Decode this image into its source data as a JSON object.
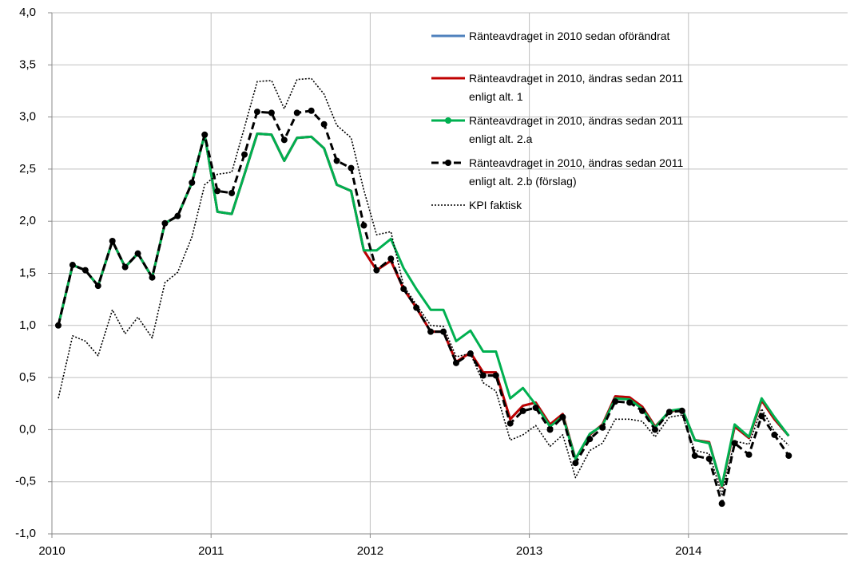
{
  "chart_data": {
    "type": "line",
    "x": [
      2010.04,
      2010.13,
      2010.21,
      2010.29,
      2010.38,
      2010.46,
      2010.54,
      2010.63,
      2010.71,
      2010.79,
      2010.88,
      2010.96,
      2011.04,
      2011.13,
      2011.21,
      2011.29,
      2011.38,
      2011.46,
      2011.54,
      2011.63,
      2011.71,
      2011.79,
      2011.88,
      2011.96,
      2012.04,
      2012.13,
      2012.21,
      2012.29,
      2012.38,
      2012.46,
      2012.54,
      2012.63,
      2012.71,
      2012.79,
      2012.88,
      2012.96,
      2013.04,
      2013.13,
      2013.21,
      2013.29,
      2013.38,
      2013.46,
      2013.54,
      2013.63,
      2013.71,
      2013.79,
      2013.88,
      2013.96,
      2014.04,
      2014.13,
      2014.21,
      2014.29,
      2014.38,
      2014.46,
      2014.54,
      2014.63
    ],
    "series": [
      {
        "name": "Ränteavdraget in 2010 sedan oförändrat",
        "color": "#4f81bd",
        "style": "solid",
        "values": [
          1.0,
          1.58,
          1.53,
          1.38,
          1.81,
          1.56,
          1.69,
          1.46,
          1.98,
          2.05,
          2.37,
          2.83,
          2.09,
          2.07,
          2.45,
          2.84,
          2.83,
          2.58,
          2.8,
          2.81,
          2.7,
          2.35,
          2.29,
          1.72,
          1.53,
          1.62,
          1.35,
          1.17,
          0.94,
          0.94,
          0.65,
          0.74,
          0.55,
          0.55,
          0.1,
          0.23,
          0.26,
          0.05,
          0.15,
          -0.28,
          -0.05,
          0.05,
          0.32,
          0.31,
          0.22,
          0.03,
          0.17,
          0.2,
          -0.1,
          -0.12,
          -0.55,
          0.03,
          -0.08,
          0.28,
          0.1,
          -0.06
        ]
      },
      {
        "name": "Ränteavdraget in 2010, ändras sedan 2011\nenligt alt. 1",
        "color": "#c00000",
        "style": "solid",
        "values": [
          1.0,
          1.58,
          1.53,
          1.38,
          1.81,
          1.56,
          1.69,
          1.46,
          1.98,
          2.05,
          2.37,
          2.83,
          2.09,
          2.07,
          2.45,
          2.84,
          2.83,
          2.58,
          2.8,
          2.81,
          2.7,
          2.35,
          2.29,
          1.72,
          1.53,
          1.62,
          1.35,
          1.17,
          0.94,
          0.94,
          0.65,
          0.74,
          0.55,
          0.55,
          0.1,
          0.23,
          0.26,
          0.05,
          0.15,
          -0.28,
          -0.05,
          0.05,
          0.32,
          0.31,
          0.22,
          0.03,
          0.17,
          0.2,
          -0.1,
          -0.12,
          -0.55,
          0.03,
          -0.08,
          0.28,
          0.1,
          -0.06
        ]
      },
      {
        "name": "Ränteavdraget in 2010, ändras sedan 2011\nenligt alt. 2.a",
        "color": "#00b050",
        "style": "solid",
        "values": [
          1.0,
          1.58,
          1.53,
          1.38,
          1.81,
          1.56,
          1.69,
          1.46,
          1.98,
          2.05,
          2.37,
          2.83,
          2.09,
          2.07,
          2.45,
          2.84,
          2.83,
          2.58,
          2.8,
          2.81,
          2.7,
          2.35,
          2.29,
          1.72,
          1.72,
          1.83,
          1.55,
          1.35,
          1.15,
          1.15,
          0.85,
          0.95,
          0.75,
          0.75,
          0.3,
          0.4,
          0.24,
          0.03,
          0.13,
          -0.28,
          -0.04,
          0.04,
          0.3,
          0.29,
          0.2,
          0.02,
          0.18,
          0.2,
          -0.1,
          -0.13,
          -0.54,
          0.05,
          -0.07,
          0.3,
          0.12,
          -0.06
        ]
      },
      {
        "name": "Ränteavdraget in 2010, ändras sedan 2011\nenligt alt. 2.b (förslag)",
        "color": "#000000",
        "style": "dashed",
        "marker": true,
        "values": [
          1.0,
          1.58,
          1.53,
          1.38,
          1.81,
          1.56,
          1.69,
          1.46,
          1.98,
          2.05,
          2.37,
          2.83,
          2.29,
          2.27,
          2.64,
          3.05,
          3.04,
          2.78,
          3.04,
          3.06,
          2.93,
          2.58,
          2.51,
          1.96,
          1.53,
          1.64,
          1.35,
          1.17,
          0.94,
          0.94,
          0.64,
          0.73,
          0.52,
          0.52,
          0.06,
          0.18,
          0.21,
          0.0,
          0.12,
          -0.32,
          -0.09,
          0.02,
          0.27,
          0.26,
          0.18,
          0.0,
          0.17,
          0.18,
          -0.25,
          -0.28,
          -0.71,
          -0.13,
          -0.24,
          0.13,
          -0.05,
          -0.25
        ]
      },
      {
        "name": "KPI faktisk",
        "color": "#000000",
        "style": "dotted",
        "values": [
          0.3,
          0.9,
          0.85,
          0.71,
          1.15,
          0.92,
          1.08,
          0.88,
          1.41,
          1.51,
          1.85,
          2.35,
          2.45,
          2.47,
          2.9,
          3.34,
          3.35,
          3.08,
          3.36,
          3.37,
          3.22,
          2.92,
          2.8,
          2.3,
          1.87,
          1.9,
          1.38,
          1.2,
          1.0,
          0.99,
          0.7,
          0.73,
          0.45,
          0.37,
          -0.1,
          -0.05,
          0.04,
          -0.16,
          -0.05,
          -0.46,
          -0.2,
          -0.13,
          0.1,
          0.1,
          0.08,
          -0.07,
          0.12,
          0.14,
          -0.2,
          -0.23,
          -0.62,
          -0.11,
          -0.14,
          0.2,
          -0.02,
          -0.15
        ]
      }
    ],
    "xlim": [
      2010,
      2015
    ],
    "xticks": [
      2010,
      2011,
      2012,
      2013,
      2014
    ],
    "ylim": [
      -1,
      4
    ],
    "yticks": [
      {
        "value": -1,
        "label": "-1,0"
      },
      {
        "value": -0.5,
        "label": "-0,5"
      },
      {
        "value": 0,
        "label": "0,0"
      },
      {
        "value": 0.5,
        "label": "0,5"
      },
      {
        "value": 1,
        "label": "1,0"
      },
      {
        "value": 1.5,
        "label": "1,5"
      },
      {
        "value": 2,
        "label": "2,0"
      },
      {
        "value": 2.5,
        "label": "2,5"
      },
      {
        "value": 3,
        "label": "3,0"
      },
      {
        "value": 3.5,
        "label": "3,5"
      },
      {
        "value": 4,
        "label": "4,0"
      }
    ],
    "grid": true
  }
}
